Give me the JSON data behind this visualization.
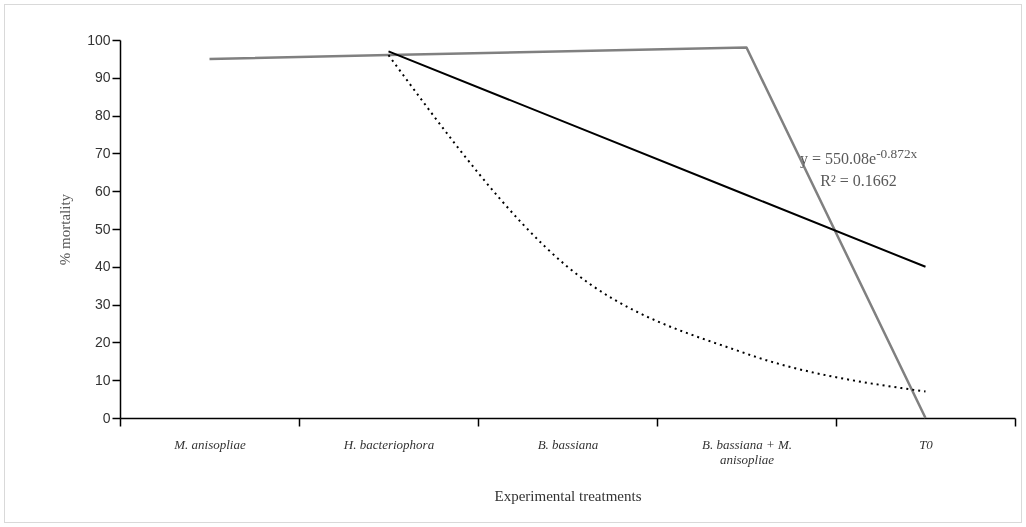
{
  "chart_data": {
    "type": "line",
    "xlabel": "Experimental  treatments",
    "ylabel": "% mortality",
    "categories": [
      "M. anisopliae",
      "H. bacteriophora",
      "B. bassiana",
      "B. bassiana + M. anisopliae",
      "T0"
    ],
    "series": [
      {
        "type": "line",
        "color": "#808080",
        "values": [
          95,
          96,
          97,
          98,
          0
        ]
      },
      {
        "type": "line",
        "color": "#000000",
        "line_style": "dotted",
        "values": [
          null,
          96,
          40,
          17,
          7
        ]
      },
      {
        "type": "line",
        "color": "#000000",
        "values": [
          null,
          97,
          78,
          59,
          40
        ]
      }
    ],
    "ylim": [
      0,
      100
    ],
    "yticks": [
      0,
      10,
      20,
      30,
      40,
      50,
      60,
      70,
      80,
      90,
      100
    ],
    "grid": false,
    "marker": "none",
    "annotations": [
      "y = 550.08e$^{-0.872x}$",
      "R² = 0.1662"
    ]
  }
}
